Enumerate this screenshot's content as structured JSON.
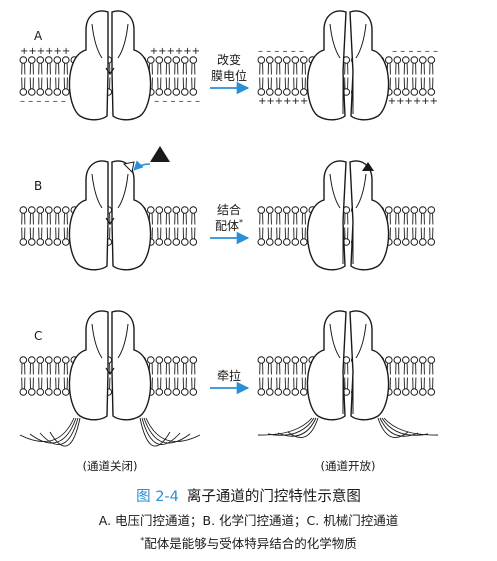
{
  "panels": [
    {
      "letter": "A",
      "action": [
        "改变",
        "膜电位"
      ]
    },
    {
      "letter": "B",
      "action": [
        "结合",
        "配体"
      ],
      "action_mark": "*"
    },
    {
      "letter": "C",
      "action": [
        "牵拉"
      ]
    }
  ],
  "charges": {
    "top_left": "++++++",
    "top_right": "++++++",
    "bottom_left": "– – – – – –",
    "bottom_right": "– – – – – –",
    "after_top_left": "– – – – – –",
    "after_top_right": "– – – – – –",
    "after_bottom_left": "++++++",
    "after_bottom_right": "++++++"
  },
  "state_labels": {
    "closed": "(通道关闭)",
    "open": "(通道开放)"
  },
  "caption": {
    "figure_number": "图 2-4",
    "title": "离子通道的门控特性示意图",
    "subtitle": "A. 电压门控通道；B. 化学门控通道；C. 机械门控通道",
    "note_mark": "*",
    "note": "配体是能够与受体特异结合的化学物质"
  },
  "colors": {
    "arrow": "#2a8fd6",
    "stroke": "#1a1a1a",
    "caption_accent": "#2a8fd6"
  },
  "icons": [
    "ligand-triangle-icon",
    "arrow-right-icon"
  ]
}
